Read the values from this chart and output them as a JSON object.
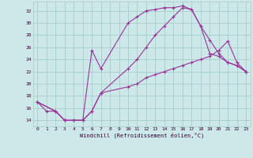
{
  "xlabel": "Windchill (Refroidissement éolien,°C)",
  "background_color": "#cce8e8",
  "grid_color": "#aacccc",
  "line_color": "#993399",
  "x_ticks": [
    0,
    1,
    2,
    3,
    4,
    5,
    6,
    7,
    8,
    9,
    10,
    11,
    12,
    13,
    14,
    15,
    16,
    17,
    18,
    19,
    20,
    21,
    22,
    23
  ],
  "y_ticks": [
    14,
    16,
    18,
    20,
    22,
    24,
    26,
    28,
    30,
    32
  ],
  "xlim": [
    -0.5,
    23.5
  ],
  "ylim": [
    13.0,
    33.5
  ],
  "line1_x": [
    0,
    1,
    2,
    3,
    4,
    5,
    6,
    7,
    10,
    11,
    12,
    13,
    14,
    15,
    16,
    17,
    18,
    19,
    20,
    21,
    22,
    23
  ],
  "line1_y": [
    17,
    15.5,
    15.5,
    14,
    14,
    14,
    25.5,
    22.5,
    30,
    31,
    32,
    32.2,
    32.5,
    32.5,
    32.8,
    32.2,
    29.5,
    25,
    24.5,
    23.5,
    23,
    22
  ],
  "line2_x": [
    0,
    2,
    3,
    4,
    5,
    6,
    7,
    10,
    11,
    12,
    13,
    14,
    15,
    16,
    17,
    18,
    19,
    20,
    21,
    22,
    23
  ],
  "line2_y": [
    17,
    15.5,
    14,
    14,
    14,
    15.5,
    18.5,
    22.5,
    24,
    26,
    28,
    29.5,
    31,
    32.5,
    32.2,
    29.5,
    27.2,
    25,
    23.5,
    23,
    22
  ],
  "line3_x": [
    0,
    2,
    3,
    4,
    5,
    6,
    7,
    10,
    11,
    12,
    13,
    14,
    15,
    16,
    17,
    18,
    19,
    20,
    21,
    22,
    23
  ],
  "line3_y": [
    17,
    15.5,
    14,
    14,
    14,
    15.5,
    18.5,
    19.5,
    20,
    21,
    21.5,
    22,
    22.5,
    23,
    23.5,
    24,
    24.5,
    25.5,
    27,
    23.5,
    22
  ]
}
